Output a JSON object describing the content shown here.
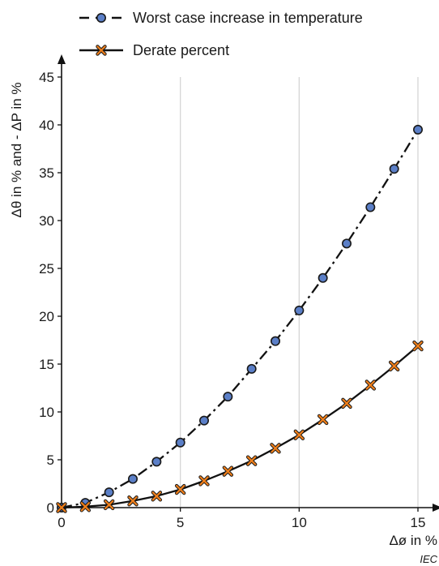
{
  "chart_data": {
    "type": "line",
    "xlabel": "Δø in %",
    "ylabel": "Δθ in % and - ΔP in %",
    "xlim": [
      0,
      15
    ],
    "ylim": [
      0,
      45
    ],
    "x_ticks": [
      0,
      5,
      10,
      15
    ],
    "y_ticks": [
      0,
      5,
      10,
      15,
      20,
      25,
      30,
      35,
      40,
      45
    ],
    "grid": "vertical",
    "legend_position": "top-left",
    "x": [
      0,
      1,
      2,
      3,
      4,
      5,
      6,
      7,
      8,
      9,
      10,
      11,
      12,
      13,
      14,
      15
    ],
    "series": [
      {
        "name": "Worst case increase in temperature",
        "line_style": "dash-dot",
        "marker": "circle",
        "marker_color": "#5b7fc7",
        "values": [
          0,
          0.5,
          1.6,
          3.0,
          4.8,
          6.8,
          9.1,
          11.6,
          14.5,
          17.4,
          20.6,
          24.0,
          27.6,
          31.4,
          35.4,
          39.5
        ]
      },
      {
        "name": "Derate percent",
        "line_style": "solid",
        "marker": "cross",
        "marker_color": "#f07f1a",
        "values": [
          0,
          0.1,
          0.3,
          0.7,
          1.2,
          1.9,
          2.8,
          3.8,
          4.9,
          6.2,
          7.6,
          9.2,
          10.9,
          12.8,
          14.8,
          16.9
        ]
      }
    ],
    "annotations": [
      "IEC"
    ]
  }
}
